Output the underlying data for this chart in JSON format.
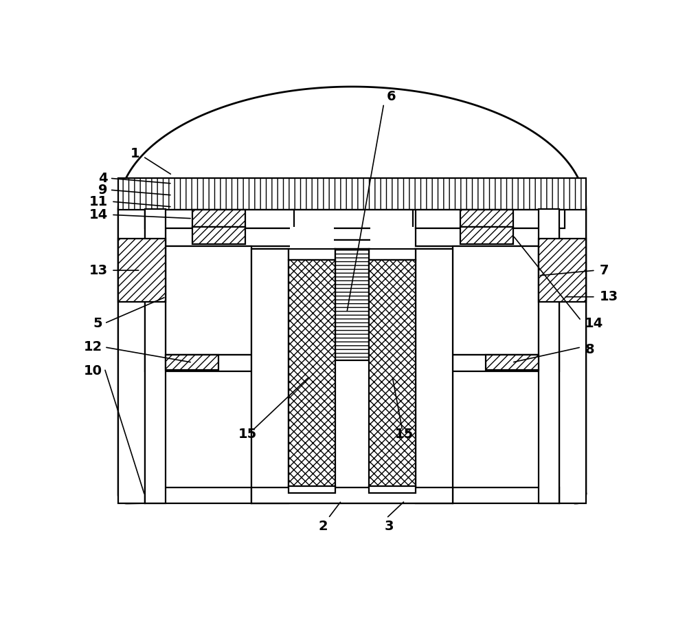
{
  "bg": "#ffffff",
  "lc": "#000000",
  "lw": 1.6,
  "fs": 14,
  "fw": "bold",
  "fig_w": 10.0,
  "fig_h": 9.09,
  "dpi": 100
}
